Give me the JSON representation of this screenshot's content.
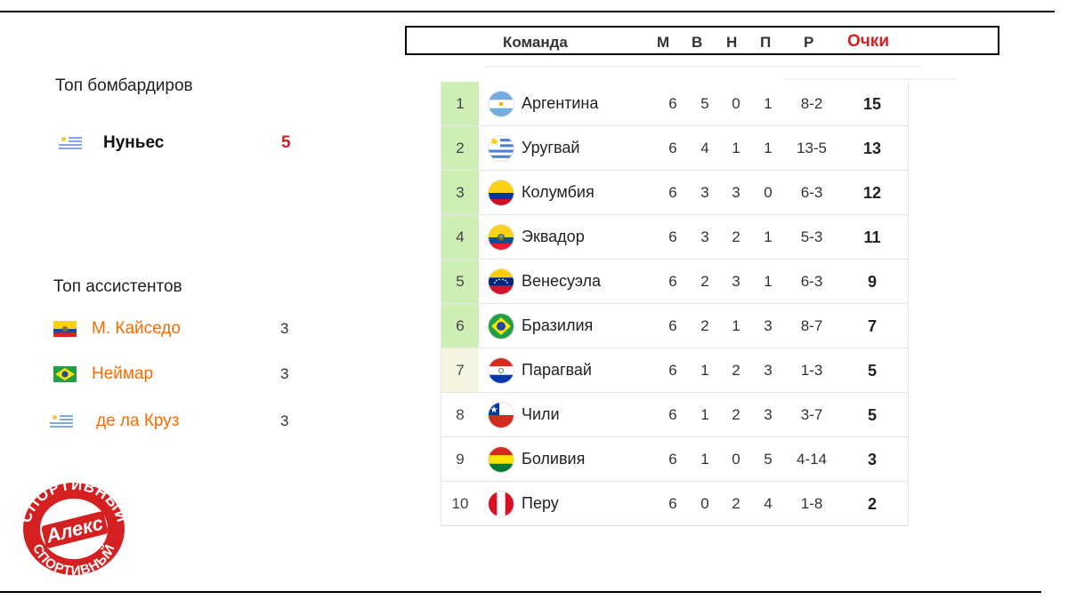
{
  "scorers": {
    "title": "Топ бомбардиров",
    "items": [
      {
        "name": "Нуньес",
        "goals": "5",
        "flag": "uruguay"
      }
    ]
  },
  "assists": {
    "title": "Топ ассистентов",
    "items": [
      {
        "name": "М. Кайседо",
        "count": "3",
        "flag": "ecuador"
      },
      {
        "name": "Неймар",
        "count": "3",
        "flag": "brazil"
      },
      {
        "name": "де ла Круз",
        "count": "3",
        "flag": "uruguay"
      }
    ]
  },
  "logo": {
    "center_text": "Алекс",
    "ring_text": "СПОРТИВНЫЙ"
  },
  "table": {
    "headers": {
      "team": "Команда",
      "played": "М",
      "won": "В",
      "draw": "Н",
      "lost": "П",
      "goals": "Р",
      "points": "Очки"
    },
    "rows": [
      {
        "pos": "1",
        "team": "Аргентина",
        "flag": "argentina",
        "m": "6",
        "w": "5",
        "d": "0",
        "l": "1",
        "g": "8-2",
        "p": "15",
        "zone": "q"
      },
      {
        "pos": "2",
        "team": "Уругвай",
        "flag": "uruguay",
        "m": "6",
        "w": "4",
        "d": "1",
        "l": "1",
        "g": "13-5",
        "p": "13",
        "zone": "q"
      },
      {
        "pos": "3",
        "team": "Колумбия",
        "flag": "colombia",
        "m": "6",
        "w": "3",
        "d": "3",
        "l": "0",
        "g": "6-3",
        "p": "12",
        "zone": "q"
      },
      {
        "pos": "4",
        "team": "Эквадор",
        "flag": "ecuador",
        "m": "6",
        "w": "3",
        "d": "2",
        "l": "1",
        "g": "5-3",
        "p": "11",
        "zone": "q"
      },
      {
        "pos": "5",
        "team": "Венесуэла",
        "flag": "venezuela",
        "m": "6",
        "w": "2",
        "d": "3",
        "l": "1",
        "g": "6-3",
        "p": "9",
        "zone": "q"
      },
      {
        "pos": "6",
        "team": "Бразилия",
        "flag": "brazil",
        "m": "6",
        "w": "2",
        "d": "1",
        "l": "3",
        "g": "8-7",
        "p": "7",
        "zone": "q"
      },
      {
        "pos": "7",
        "team": "Парагвай",
        "flag": "paraguay",
        "m": "6",
        "w": "1",
        "d": "2",
        "l": "3",
        "g": "1-3",
        "p": "5",
        "zone": "p"
      },
      {
        "pos": "8",
        "team": "Чили",
        "flag": "chile",
        "m": "6",
        "w": "1",
        "d": "2",
        "l": "3",
        "g": "3-7",
        "p": "5",
        "zone": "n"
      },
      {
        "pos": "9",
        "team": "Боливия",
        "flag": "bolivia",
        "m": "6",
        "w": "1",
        "d": "0",
        "l": "5",
        "g": "4-14",
        "p": "3",
        "zone": "n"
      },
      {
        "pos": "10",
        "team": "Перу",
        "flag": "peru",
        "m": "6",
        "w": "0",
        "d": "2",
        "l": "4",
        "g": "1-8",
        "p": "2",
        "zone": "n"
      }
    ]
  },
  "colors": {
    "qualify_zone": "#cfeeb5",
    "playoff_zone": "#f4f6e2",
    "points_header": "#d62020",
    "assist_name": "#ff6a00"
  }
}
